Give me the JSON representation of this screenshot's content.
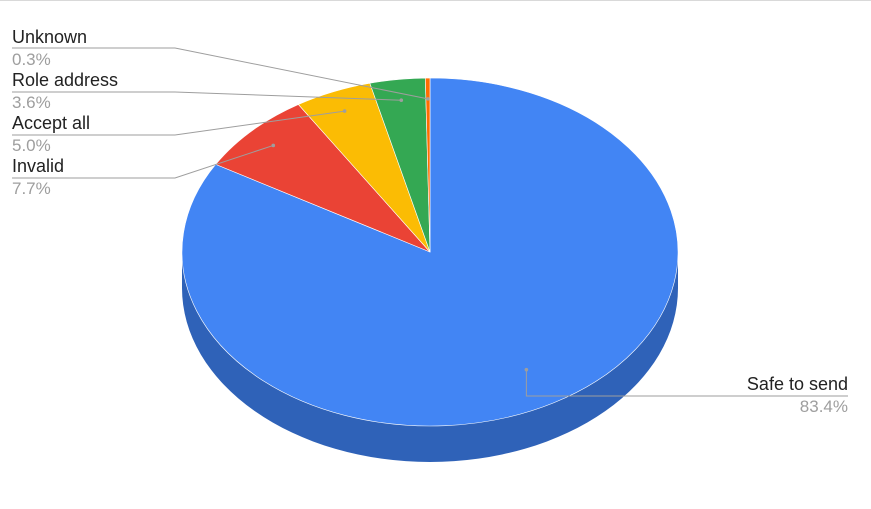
{
  "chart_data": {
    "type": "pie",
    "three_d": true,
    "legend": "none",
    "slices": [
      {
        "label": "Safe to send",
        "value": 83.4,
        "value_label": "83.4%",
        "color": "#4285F4",
        "side_color": "#2F62B8"
      },
      {
        "label": "Invalid",
        "value": 7.7,
        "value_label": "7.7%",
        "color": "#EA4335",
        "side_color": "#B3322A"
      },
      {
        "label": "Accept all",
        "value": 5.0,
        "value_label": "5.0%",
        "color": "#FBBC04",
        "side_color": "#C28F02"
      },
      {
        "label": "Role address",
        "value": 3.6,
        "value_label": "3.6%",
        "color": "#34A853",
        "side_color": "#267F3E"
      },
      {
        "label": "Unknown",
        "value": 0.3,
        "value_label": "0.3%",
        "color": "#FF6D01",
        "side_color": "#C35300"
      }
    ]
  }
}
